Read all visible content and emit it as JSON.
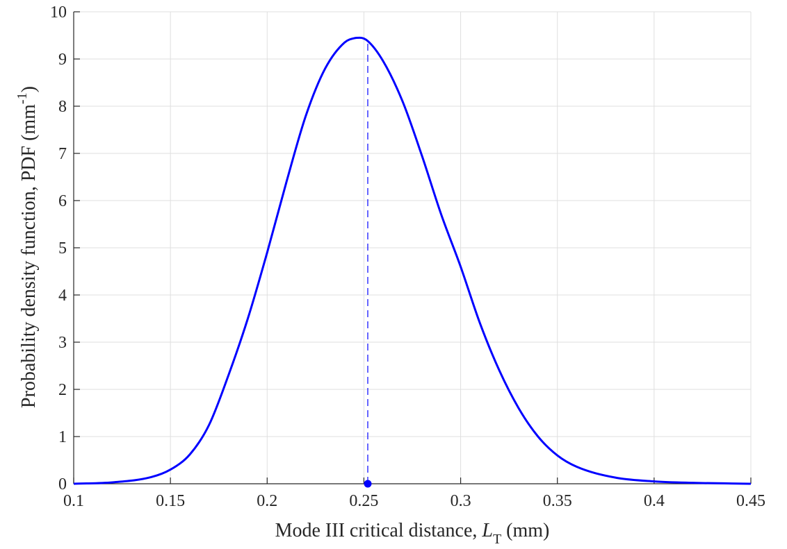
{
  "chart_data": {
    "type": "line",
    "xlabel": "Mode III critical distance, ",
    "xlabel_symbol": "L",
    "xlabel_subscript": "T",
    "xlabel_unit": " (mm)",
    "ylabel": "Probability density function, PDF (mm",
    "ylabel_superscript": "-1",
    "ylabel_close": ")",
    "xlim": [
      0.1,
      0.45
    ],
    "ylim": [
      0,
      10
    ],
    "x_ticks": [
      "0.1",
      "0.15",
      "0.2",
      "0.25",
      "0.3",
      "0.35",
      "0.4",
      "0.45"
    ],
    "y_ticks": [
      "0",
      "1",
      "2",
      "3",
      "4",
      "5",
      "6",
      "7",
      "8",
      "9",
      "10"
    ],
    "grid": true,
    "series": [
      {
        "color": "#0000ff",
        "x": [
          0.1,
          0.12,
          0.14,
          0.15,
          0.16,
          0.17,
          0.18,
          0.19,
          0.2,
          0.21,
          0.22,
          0.23,
          0.24,
          0.245,
          0.248,
          0.252,
          0.26,
          0.27,
          0.28,
          0.29,
          0.3,
          0.31,
          0.32,
          0.33,
          0.34,
          0.35,
          0.36,
          0.38,
          0.4,
          0.42,
          0.45
        ],
        "y": [
          0.0,
          0.03,
          0.14,
          0.3,
          0.62,
          1.25,
          2.3,
          3.5,
          4.9,
          6.4,
          7.8,
          8.8,
          9.35,
          9.44,
          9.45,
          9.38,
          8.95,
          8.1,
          6.95,
          5.7,
          4.6,
          3.4,
          2.4,
          1.6,
          1.0,
          0.6,
          0.36,
          0.13,
          0.05,
          0.02,
          0.0
        ]
      }
    ],
    "marker": {
      "x": 0.252,
      "y": 0,
      "color": "#0000ff"
    },
    "reference_line": {
      "x": 0.252,
      "y_from": 0,
      "y_to": 9.38,
      "style": "dashed",
      "color": "#0000ff"
    }
  }
}
